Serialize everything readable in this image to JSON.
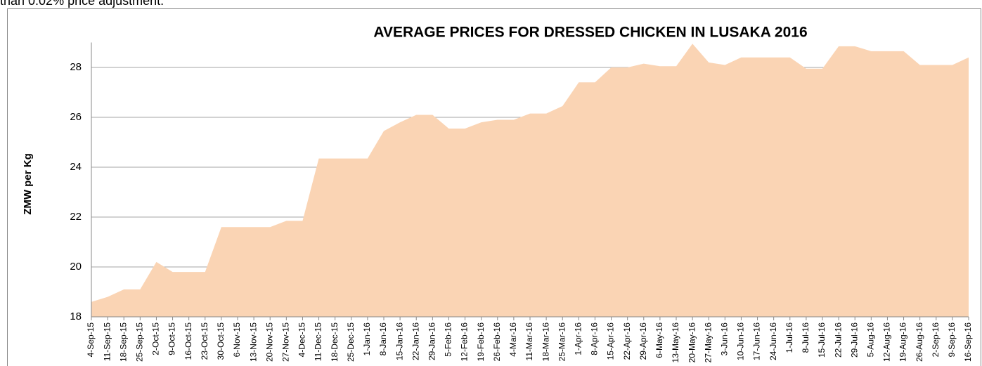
{
  "caption": "than 0.02% price adjustment.",
  "chart_data": {
    "type": "area",
    "title": "AVERAGE PRICES FOR DRESSED CHICKEN IN LUSAKA 2016",
    "ylabel": "ZMW per Kg",
    "categories": [
      "4-Sep-15",
      "11-Sep-15",
      "18-Sep-15",
      "25-Sep-15",
      "2-Oct-15",
      "9-Oct-15",
      "16-Oct-15",
      "23-Oct-15",
      "30-Oct-15",
      "6-Nov-15",
      "13-Nov-15",
      "20-Nov-15",
      "27-Nov-15",
      "4-Dec-15",
      "11-Dec-15",
      "18-Dec-15",
      "25-Dec-15",
      "1-Jan-16",
      "8-Jan-16",
      "15-Jan-16",
      "22-Jan-16",
      "29-Jan-16",
      "5-Feb-16",
      "12-Feb-16",
      "19-Feb-16",
      "26-Feb-16",
      "4-Mar-16",
      "11-Mar-16",
      "18-Mar-16",
      "25-Mar-16",
      "1-Apr-16",
      "8-Apr-16",
      "15-Apr-16",
      "22-Apr-16",
      "29-Apr-16",
      "6-May-16",
      "13-May-16",
      "20-May-16",
      "27-May-16",
      "3-Jun-16",
      "10-Jun-16",
      "17-Jun-16",
      "24-Jun-16",
      "1-Jul-16",
      "8-Jul-16",
      "15-Jul-16",
      "22-Jul-16",
      "29-Jul-16",
      "5-Aug-16",
      "12-Aug-16",
      "19-Aug-16",
      "26-Aug-16",
      "2-Sep-16",
      "9-Sep-16",
      "16-Sep-16"
    ],
    "values": [
      18.6,
      18.8,
      19.1,
      19.1,
      20.2,
      19.8,
      19.8,
      19.8,
      21.6,
      21.6,
      21.6,
      21.6,
      21.85,
      21.85,
      24.35,
      24.35,
      24.35,
      24.35,
      25.45,
      25.8,
      26.1,
      26.1,
      25.55,
      25.55,
      25.8,
      25.9,
      25.9,
      26.15,
      26.15,
      26.45,
      27.4,
      27.4,
      28.0,
      28.0,
      28.15,
      28.05,
      28.05,
      28.95,
      28.2,
      28.1,
      28.4,
      28.4,
      28.4,
      28.4,
      27.95,
      27.95,
      28.85,
      28.85,
      28.65,
      28.65,
      28.65,
      28.1,
      28.1,
      28.1,
      28.4
    ],
    "color": "#fad4b4",
    "ylim": [
      18,
      29
    ],
    "yticks": [
      18,
      20,
      22,
      24,
      26,
      28
    ],
    "grid": true
  }
}
